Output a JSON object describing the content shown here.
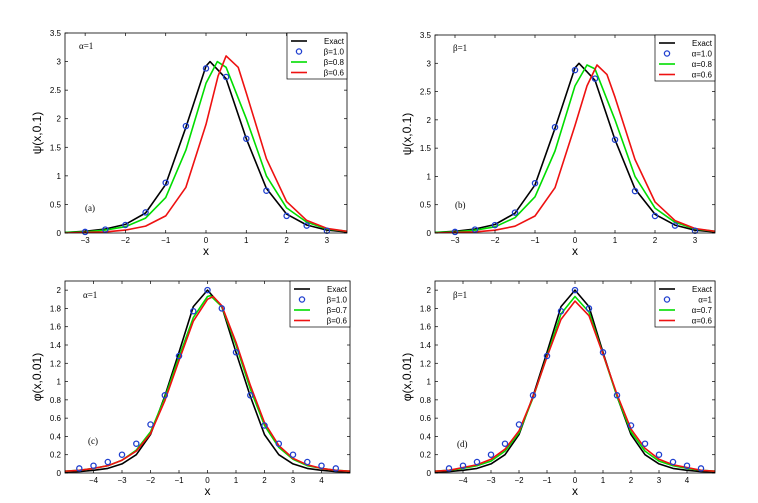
{
  "chart_data": [
    {
      "type": "line",
      "panel": "(a)",
      "annotation": "α=1",
      "xlabel": "x",
      "ylabel": "ψ(x,0.1)",
      "xlim": [
        -3.5,
        3.5
      ],
      "ylim": [
        0,
        3.5
      ],
      "xticks": [
        -3,
        -2,
        -1,
        0,
        1,
        2,
        3
      ],
      "yticks": [
        0,
        0.5,
        1,
        1.5,
        2,
        2.5,
        3,
        3.5
      ],
      "xtick_labels": [
        "−3",
        "−2",
        "−1",
        "0",
        "1",
        "2",
        "3"
      ],
      "ytick_labels": [
        "0",
        "0.5",
        "1",
        "1.5",
        "2",
        "2.5",
        "3",
        "3.5"
      ],
      "legend": [
        "Exact",
        "β=1.0",
        "β=0.8",
        "β=0.6"
      ],
      "legend_position": "top-right",
      "series": [
        {
          "name": "Exact",
          "style": "line",
          "color": "#000000",
          "x": [
            -3.5,
            -3,
            -2.5,
            -2,
            -1.5,
            -1,
            -0.5,
            0,
            0.1,
            0.5,
            1,
            1.5,
            2,
            2.5,
            3,
            3.5
          ],
          "y": [
            0.01,
            0.03,
            0.07,
            0.15,
            0.35,
            0.85,
            1.85,
            2.92,
            3.0,
            2.7,
            1.65,
            0.78,
            0.33,
            0.14,
            0.05,
            0.02
          ]
        },
        {
          "name": "β=1.0",
          "style": "marker",
          "color": "#1f3fcf",
          "x": [
            -3,
            -2.5,
            -2,
            -1.5,
            -1,
            -0.5,
            0,
            0.5,
            1,
            1.5,
            2,
            2.5,
            3
          ],
          "y": [
            0.02,
            0.06,
            0.14,
            0.36,
            0.88,
            1.87,
            2.88,
            2.73,
            1.65,
            0.74,
            0.3,
            0.13,
            0.04
          ]
        },
        {
          "name": "β=0.8",
          "style": "line",
          "color": "#00dd00",
          "x": [
            -3.5,
            -3,
            -2.5,
            -2,
            -1.5,
            -1,
            -0.5,
            0,
            0.28,
            0.5,
            1,
            1.5,
            2,
            2.5,
            3,
            3.5
          ],
          "y": [
            0.01,
            0.02,
            0.05,
            0.11,
            0.26,
            0.62,
            1.45,
            2.62,
            3.0,
            2.9,
            2.0,
            1.0,
            0.44,
            0.19,
            0.07,
            0.03
          ]
        },
        {
          "name": "β=0.6",
          "style": "line",
          "color": "#ee1111",
          "x": [
            -3.5,
            -3,
            -2.5,
            -2,
            -1.5,
            -1,
            -0.5,
            0,
            0.3,
            0.5,
            0.8,
            1,
            1.5,
            2,
            2.5,
            3,
            3.5
          ],
          "y": [
            0.0,
            0.01,
            0.02,
            0.05,
            0.12,
            0.3,
            0.8,
            1.9,
            2.75,
            3.1,
            2.9,
            2.45,
            1.3,
            0.55,
            0.22,
            0.08,
            0.03
          ]
        }
      ]
    },
    {
      "type": "line",
      "panel": "(b)",
      "annotation": "β=1",
      "xlabel": "x",
      "ylabel": "ψ(x,0.1)",
      "xlim": [
        -3.5,
        3.5
      ],
      "ylim": [
        0,
        3.5
      ],
      "xticks": [
        -3,
        -2,
        -1,
        0,
        1,
        2,
        3
      ],
      "yticks": [
        0,
        0.5,
        1,
        1.5,
        2,
        2.5,
        3,
        3.5
      ],
      "xtick_labels": [
        "−3",
        "−2",
        "−1",
        "0",
        "1",
        "2",
        "3"
      ],
      "ytick_labels": [
        "0",
        "0.5",
        "1",
        "1.5",
        "2",
        "2.5",
        "3",
        "3.5"
      ],
      "legend": [
        "Exact",
        "α=1.0",
        "α=0.8",
        "α=0.6"
      ],
      "legend_position": "top-right",
      "series": [
        {
          "name": "Exact",
          "style": "line",
          "color": "#000000",
          "x": [
            -3.5,
            -3,
            -2.5,
            -2,
            -1.5,
            -1,
            -0.5,
            0,
            0.1,
            0.5,
            1,
            1.5,
            2,
            2.5,
            3,
            3.5
          ],
          "y": [
            0.01,
            0.03,
            0.07,
            0.15,
            0.35,
            0.85,
            1.85,
            2.92,
            3.0,
            2.7,
            1.65,
            0.78,
            0.33,
            0.14,
            0.05,
            0.02
          ]
        },
        {
          "name": "α=1.0",
          "style": "marker",
          "color": "#1f3fcf",
          "x": [
            -3,
            -2.5,
            -2,
            -1.5,
            -1,
            -0.5,
            0,
            0.5,
            1,
            1.5,
            2,
            2.5,
            3
          ],
          "y": [
            0.02,
            0.06,
            0.14,
            0.36,
            0.88,
            1.87,
            2.88,
            2.73,
            1.65,
            0.74,
            0.3,
            0.13,
            0.04
          ]
        },
        {
          "name": "α=0.8",
          "style": "line",
          "color": "#00dd00",
          "x": [
            -3.5,
            -3,
            -2.5,
            -2,
            -1.5,
            -1,
            -0.5,
            0,
            0.3,
            0.5,
            1,
            1.5,
            2,
            2.5,
            3,
            3.5
          ],
          "y": [
            0.01,
            0.02,
            0.05,
            0.11,
            0.27,
            0.64,
            1.45,
            2.6,
            2.97,
            2.9,
            2.0,
            1.0,
            0.44,
            0.19,
            0.07,
            0.03
          ]
        },
        {
          "name": "α=0.6",
          "style": "line",
          "color": "#ee1111",
          "x": [
            -3.5,
            -3,
            -2.5,
            -2,
            -1.5,
            -1,
            -0.5,
            0,
            0.3,
            0.55,
            0.8,
            1,
            1.5,
            2,
            2.5,
            3,
            3.5
          ],
          "y": [
            0.0,
            0.01,
            0.02,
            0.05,
            0.12,
            0.3,
            0.8,
            1.9,
            2.6,
            2.97,
            2.8,
            2.4,
            1.3,
            0.55,
            0.22,
            0.08,
            0.03
          ]
        }
      ]
    },
    {
      "type": "line",
      "panel": "(c)",
      "annotation": "α=1",
      "xlabel": "x",
      "ylabel": "φ(x,0.01)",
      "xlim": [
        -5,
        5
      ],
      "ylim": [
        0,
        2.1
      ],
      "xticks": [
        -4,
        -3,
        -2,
        -1,
        0,
        1,
        2,
        3,
        4
      ],
      "yticks": [
        0,
        0.2,
        0.4,
        0.6,
        0.8,
        1,
        1.2,
        1.4,
        1.6,
        1.8,
        2
      ],
      "xtick_labels": [
        "−4",
        "−3",
        "−2",
        "−1",
        "0",
        "1",
        "2",
        "3",
        "4"
      ],
      "ytick_labels": [
        "0",
        "0.2",
        "0.4",
        "0.6",
        "0.8",
        "1",
        "1.2",
        "1.4",
        "1.6",
        "1.8",
        "2"
      ],
      "legend": [
        "Exact",
        "β=1.0",
        "β=0.7",
        "β=0.6"
      ],
      "legend_position": "top-right",
      "series": [
        {
          "name": "Exact",
          "style": "line",
          "color": "#000000",
          "x": [
            -5,
            -4.5,
            -4,
            -3.5,
            -3,
            -2.5,
            -2,
            -1.5,
            -1,
            -0.5,
            0,
            0.5,
            1,
            1.5,
            2,
            2.5,
            3,
            3.5,
            4,
            4.5,
            5
          ],
          "y": [
            0.01,
            0.015,
            0.03,
            0.05,
            0.1,
            0.2,
            0.42,
            0.84,
            1.32,
            1.82,
            2.0,
            1.82,
            1.32,
            0.84,
            0.42,
            0.2,
            0.1,
            0.05,
            0.03,
            0.015,
            0.01
          ]
        },
        {
          "name": "β=1.0",
          "style": "marker",
          "color": "#1f3fcf",
          "x": [
            -4.5,
            -4,
            -3.5,
            -3,
            -2.5,
            -2,
            -1.5,
            -1,
            -0.5,
            0,
            0.5,
            1,
            1.5,
            2,
            2.5,
            3,
            3.5,
            4,
            4.5
          ],
          "y": [
            0.05,
            0.08,
            0.12,
            0.2,
            0.32,
            0.53,
            0.85,
            1.28,
            1.77,
            2.0,
            1.8,
            1.32,
            0.85,
            0.52,
            0.32,
            0.2,
            0.12,
            0.08,
            0.05
          ]
        },
        {
          "name": "β=0.7",
          "style": "line",
          "color": "#00dd00",
          "x": [
            -5,
            -4.5,
            -4,
            -3.5,
            -3,
            -2.5,
            -2,
            -1.5,
            -1,
            -0.5,
            0,
            0.1,
            0.5,
            1,
            1.5,
            2,
            2.5,
            3,
            3.5,
            4,
            4.5,
            5
          ],
          "y": [
            0.02,
            0.03,
            0.05,
            0.08,
            0.14,
            0.25,
            0.45,
            0.82,
            1.27,
            1.7,
            1.93,
            1.94,
            1.82,
            1.4,
            0.92,
            0.52,
            0.28,
            0.15,
            0.08,
            0.05,
            0.03,
            0.02
          ]
        },
        {
          "name": "β=0.6",
          "style": "line",
          "color": "#ee1111",
          "x": [
            -5,
            -4.5,
            -4,
            -3.5,
            -3,
            -2.5,
            -2,
            -1.5,
            -1,
            -0.5,
            0,
            0.2,
            0.5,
            1,
            1.5,
            2,
            2.5,
            3,
            3.5,
            4,
            4.5,
            5
          ],
          "y": [
            0.02,
            0.03,
            0.05,
            0.08,
            0.14,
            0.24,
            0.43,
            0.79,
            1.23,
            1.66,
            1.9,
            1.93,
            1.83,
            1.43,
            0.96,
            0.55,
            0.3,
            0.16,
            0.09,
            0.05,
            0.03,
            0.02
          ]
        }
      ]
    },
    {
      "type": "line",
      "panel": "(d)",
      "annotation": "β=1",
      "xlabel": "x",
      "ylabel": "φ(x,0.01)",
      "xlim": [
        -5,
        5
      ],
      "ylim": [
        0,
        2.1
      ],
      "xticks": [
        -4,
        -3,
        -2,
        -1,
        0,
        1,
        2,
        3,
        4
      ],
      "yticks": [
        0,
        0.2,
        0.4,
        0.6,
        0.8,
        1,
        1.2,
        1.4,
        1.6,
        1.8,
        2
      ],
      "xtick_labels": [
        "−4",
        "−3",
        "−2",
        "−1",
        "0",
        "1",
        "2",
        "3",
        "4"
      ],
      "ytick_labels": [
        "0",
        "0.2",
        "0.4",
        "0.6",
        "0.8",
        "1",
        "1.2",
        "1.4",
        "1.6",
        "1.8",
        "2"
      ],
      "legend": [
        "Exact",
        "α=1",
        "α=0.7",
        "α=0.6"
      ],
      "legend_position": "top-right",
      "series": [
        {
          "name": "Exact",
          "style": "line",
          "color": "#000000",
          "x": [
            -5,
            -4.5,
            -4,
            -3.5,
            -3,
            -2.5,
            -2,
            -1.5,
            -1,
            -0.5,
            0,
            0.5,
            1,
            1.5,
            2,
            2.5,
            3,
            3.5,
            4,
            4.5,
            5
          ],
          "y": [
            0.01,
            0.015,
            0.03,
            0.05,
            0.1,
            0.2,
            0.42,
            0.84,
            1.32,
            1.82,
            2.0,
            1.82,
            1.32,
            0.84,
            0.42,
            0.2,
            0.1,
            0.05,
            0.03,
            0.015,
            0.01
          ]
        },
        {
          "name": "α=1",
          "style": "marker",
          "color": "#1f3fcf",
          "x": [
            -4.5,
            -4,
            -3.5,
            -3,
            -2.5,
            -2,
            -1.5,
            -1,
            -0.5,
            0,
            0.5,
            1,
            1.5,
            2,
            2.5,
            3,
            3.5,
            4,
            4.5
          ],
          "y": [
            0.05,
            0.08,
            0.12,
            0.2,
            0.32,
            0.53,
            0.85,
            1.28,
            1.77,
            2.0,
            1.8,
            1.32,
            0.85,
            0.52,
            0.32,
            0.2,
            0.12,
            0.08,
            0.05
          ]
        },
        {
          "name": "α=0.7",
          "style": "line",
          "color": "#00dd00",
          "x": [
            -5,
            -4.5,
            -4,
            -3.5,
            -3,
            -2.5,
            -2,
            -1.5,
            -1,
            -0.5,
            0,
            0.5,
            1,
            1.5,
            2,
            2.5,
            3,
            3.5,
            4,
            4.5,
            5
          ],
          "y": [
            0.02,
            0.03,
            0.05,
            0.08,
            0.13,
            0.24,
            0.44,
            0.82,
            1.28,
            1.74,
            1.93,
            1.76,
            1.3,
            0.84,
            0.45,
            0.24,
            0.13,
            0.08,
            0.05,
            0.03,
            0.02
          ]
        },
        {
          "name": "α=0.6",
          "style": "line",
          "color": "#ee1111",
          "x": [
            -5,
            -4.5,
            -4,
            -3.5,
            -3,
            -2.5,
            -2,
            -1.5,
            -1,
            -0.5,
            0,
            0.5,
            1,
            1.5,
            2,
            2.5,
            3,
            3.5,
            4,
            4.5,
            5
          ],
          "y": [
            0.02,
            0.03,
            0.06,
            0.09,
            0.15,
            0.26,
            0.46,
            0.83,
            1.27,
            1.68,
            1.88,
            1.72,
            1.3,
            0.86,
            0.48,
            0.27,
            0.15,
            0.09,
            0.06,
            0.03,
            0.02
          ]
        }
      ]
    }
  ]
}
